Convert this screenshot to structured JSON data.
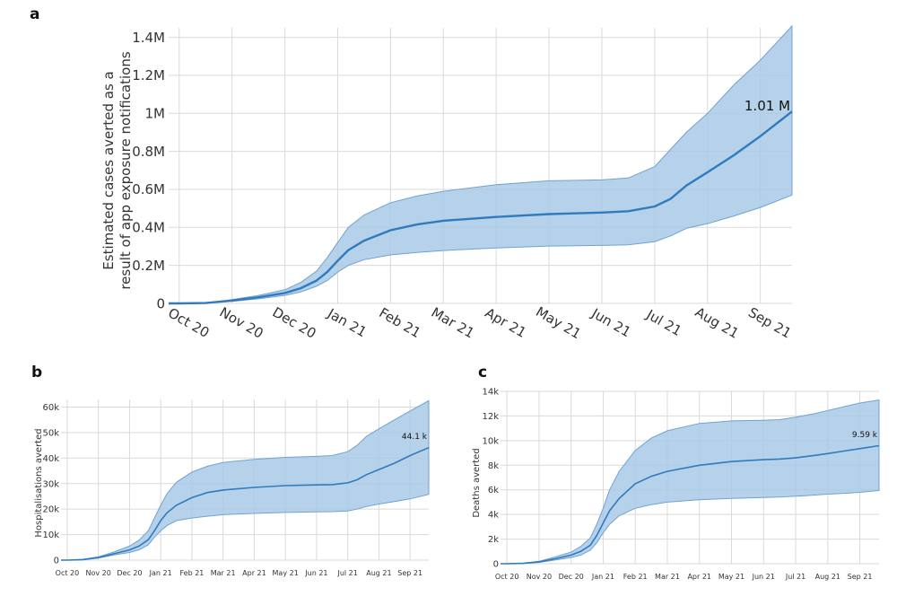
{
  "chart_data": [
    {
      "id": "a",
      "type": "line",
      "panel_label": "a",
      "title": "",
      "xlabel": "",
      "ylabel": [
        "Estimated cases averted as a",
        "result of app exposure notifications"
      ],
      "ylim": [
        0,
        1450000
      ],
      "y_ticks": [
        0,
        200000,
        400000,
        600000,
        800000,
        1000000,
        1200000,
        1400000
      ],
      "y_tick_labels": [
        "0",
        "0.2M",
        "0.4M",
        "0.6M",
        "0.8M",
        "1M",
        "1.2M",
        "1.4M"
      ],
      "x_ticks": [
        "Oct 20",
        "Nov 20",
        "Dec 20",
        "Jan 21",
        "Feb 21",
        "Mar 21",
        "Apr 21",
        "May 21",
        "Jun 21",
        "Jul 21",
        "Aug 21",
        "Sep 21"
      ],
      "x_range_months": [
        -0.2,
        11.6
      ],
      "grid": true,
      "annotation": "1.01 M",
      "series": [
        {
          "x": [
            -0.2,
            0.0,
            0.5,
            1.0,
            1.5,
            2.0,
            2.3,
            2.6,
            2.8,
            3.0,
            3.2,
            3.5,
            4.0,
            4.5,
            5.0,
            6.0,
            7.0,
            8.0,
            8.5,
            9.0,
            9.3,
            9.6,
            10.0,
            10.5,
            11.0,
            11.6
          ],
          "median": [
            0,
            0,
            2000,
            15000,
            32000,
            55000,
            80000,
            120000,
            165000,
            225000,
            280000,
            330000,
            385000,
            415000,
            435000,
            455000,
            470000,
            478000,
            485000,
            510000,
            550000,
            620000,
            690000,
            780000,
            880000,
            1010000
          ],
          "lower": [
            0,
            0,
            1500,
            11000,
            24000,
            42000,
            60000,
            90000,
            120000,
            165000,
            200000,
            230000,
            255000,
            268000,
            278000,
            292000,
            302000,
            305000,
            308000,
            325000,
            355000,
            395000,
            420000,
            460000,
            505000,
            570000
          ],
          "upper": [
            0,
            0,
            3000,
            20000,
            42000,
            72000,
            110000,
            170000,
            240000,
            320000,
            400000,
            465000,
            530000,
            565000,
            590000,
            625000,
            645000,
            650000,
            660000,
            720000,
            810000,
            900000,
            1000000,
            1150000,
            1280000,
            1460000
          ]
        }
      ]
    },
    {
      "id": "b",
      "type": "line",
      "panel_label": "b",
      "title": "",
      "xlabel": "",
      "ylabel": [
        "Hospitalisations averted"
      ],
      "ylim": [
        0,
        63000
      ],
      "y_ticks": [
        0,
        10000,
        20000,
        30000,
        40000,
        50000,
        60000
      ],
      "y_tick_labels": [
        "0",
        "10k",
        "20k",
        "30k",
        "40k",
        "50k",
        "60k"
      ],
      "x_ticks": [
        "Oct 20",
        "Nov 20",
        "Dec 20",
        "Jan 21",
        "Feb 21",
        "Mar 21",
        "Apr 21",
        "May 21",
        "Jun 21",
        "Jul 21",
        "Aug 21",
        "Sep 21"
      ],
      "x_range_months": [
        -0.2,
        11.6
      ],
      "grid": true,
      "annotation": "44.1 k",
      "series": [
        {
          "x": [
            -0.2,
            0.0,
            0.5,
            1.0,
            1.5,
            2.0,
            2.3,
            2.6,
            2.8,
            3.0,
            3.2,
            3.5,
            4.0,
            4.5,
            5.0,
            6.0,
            7.0,
            8.0,
            8.5,
            9.0,
            9.3,
            9.6,
            10.0,
            10.5,
            11.0,
            11.6
          ],
          "median": [
            0,
            0,
            200,
            1000,
            2500,
            4000,
            5500,
            8000,
            11500,
            15500,
            18500,
            21500,
            24500,
            26500,
            27500,
            28500,
            29200,
            29500,
            29600,
            30300,
            31500,
            33500,
            35500,
            38000,
            41000,
            44100
          ],
          "lower": [
            0,
            0,
            150,
            800,
            2000,
            3000,
            4000,
            6000,
            9000,
            11500,
            13500,
            15500,
            16500,
            17200,
            17800,
            18300,
            18700,
            18900,
            19000,
            19300,
            20000,
            21000,
            22000,
            23000,
            24000,
            25800
          ],
          "upper": [
            0,
            0,
            300,
            1300,
            3200,
            5500,
            7800,
            11500,
            16500,
            21500,
            26000,
            30500,
            34500,
            36800,
            38300,
            39500,
            40300,
            40700,
            41000,
            42500,
            45000,
            48500,
            51500,
            55000,
            58500,
            62500
          ]
        }
      ]
    },
    {
      "id": "c",
      "type": "line",
      "panel_label": "c",
      "title": "",
      "xlabel": "",
      "ylabel": [
        "Deaths averted"
      ],
      "ylim": [
        0,
        14000
      ],
      "y_ticks": [
        0,
        2000,
        4000,
        6000,
        8000,
        10000,
        12000,
        14000
      ],
      "y_tick_labels": [
        "0",
        "2k",
        "4k",
        "6k",
        "8k",
        "10k",
        "12k",
        "14k"
      ],
      "x_ticks": [
        "Oct 20",
        "Nov 20",
        "Dec 20",
        "Jan 21",
        "Feb 21",
        "Mar 21",
        "Apr 21",
        "May 21",
        "Jun 21",
        "Jul 21",
        "Aug 21",
        "Sep 21"
      ],
      "x_range_months": [
        -0.2,
        11.6
      ],
      "grid": true,
      "annotation": "9.59 k",
      "series": [
        {
          "x": [
            -0.2,
            0.0,
            0.5,
            1.0,
            1.5,
            2.0,
            2.3,
            2.6,
            2.8,
            3.0,
            3.2,
            3.5,
            4.0,
            4.5,
            5.0,
            6.0,
            7.0,
            8.0,
            8.5,
            9.0,
            9.3,
            9.6,
            10.0,
            10.5,
            11.0,
            11.6
          ],
          "median": [
            0,
            0,
            30,
            150,
            400,
            700,
            1000,
            1500,
            2300,
            3300,
            4300,
            5300,
            6500,
            7100,
            7500,
            8000,
            8300,
            8450,
            8500,
            8600,
            8700,
            8800,
            8950,
            9150,
            9350,
            9590
          ],
          "lower": [
            0,
            0,
            20,
            100,
            300,
            500,
            700,
            1100,
            1700,
            2500,
            3200,
            3900,
            4500,
            4800,
            5000,
            5200,
            5300,
            5380,
            5420,
            5480,
            5530,
            5580,
            5650,
            5720,
            5800,
            5950
          ],
          "upper": [
            0,
            0,
            40,
            200,
            550,
            950,
            1400,
            2100,
            3200,
            4500,
            6000,
            7500,
            9200,
            10200,
            10800,
            11400,
            11600,
            11650,
            11700,
            11900,
            12050,
            12200,
            12450,
            12750,
            13050,
            13300
          ]
        }
      ]
    }
  ]
}
